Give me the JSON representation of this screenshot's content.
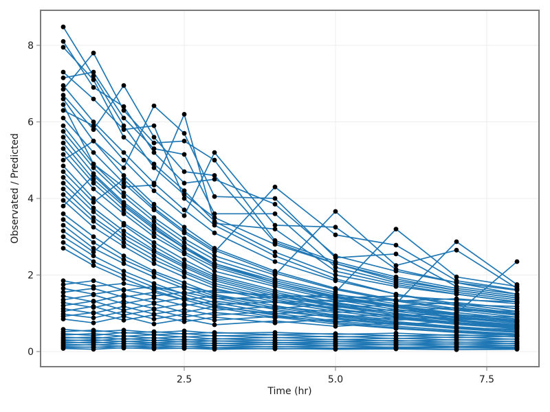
{
  "figure": {
    "background": "#ffffff"
  },
  "chart_data": {
    "type": "line",
    "title": "",
    "xlabel": "Time (hr)",
    "ylabel": "Observated / Predicted",
    "legend": "none",
    "grid": true,
    "marker": "circle",
    "xlim": [
      0.125,
      8.364
    ],
    "ylim": [
      -0.395,
      8.915
    ],
    "xticks": [
      2.5,
      5.0,
      7.5
    ],
    "xtick_labels": [
      "2.5",
      "5.0",
      "7.5"
    ],
    "yticks": [
      0,
      2,
      4,
      6,
      8
    ],
    "ytick_labels": [
      "0",
      "2",
      "4",
      "6",
      "8"
    ],
    "style": {
      "line_color": "#1f77b4",
      "marker_color": "#000000",
      "grid_color": "#ececec",
      "spine_color": "#7a7a7a",
      "tick_color": "#999999"
    },
    "x": [
      0.5,
      1,
      1.5,
      2,
      2.5,
      3,
      4,
      5,
      6,
      7,
      8
    ],
    "series": [
      [
        8.48,
        7.2,
        5.9,
        4.8,
        4.1,
        3.5,
        2.8,
        2.3,
        1.9,
        1.6,
        1.4
      ],
      [
        8.1,
        6.9,
        6.4,
        5.2,
        4.4,
        4.5,
        3.85,
        2.5,
        2.1,
        1.8,
        1.5
      ],
      [
        7.95,
        7.1,
        5.6,
        4.9,
        4.2,
        3.4,
        2.6,
        2.0,
        1.7,
        1.5,
        1.3
      ],
      [
        7.3,
        6.6,
        5.8,
        5.9,
        4.0,
        3.3,
        2.5,
        1.9,
        1.5,
        1.2,
        1.0
      ],
      [
        7.15,
        7.3,
        6.1,
        5.3,
        5.15,
        3.6,
        3.6,
        2.2,
        1.8,
        1.55,
        1.35
      ],
      [
        6.95,
        6.0,
        5.2,
        4.4,
        3.7,
        3.1,
        2.35,
        1.85,
        1.5,
        1.25,
        1.05
      ],
      [
        6.85,
        7.8,
        6.3,
        5.45,
        5.5,
        5.0,
        2.9,
        2.35,
        1.95,
        1.65,
        1.45
      ],
      [
        6.7,
        5.8,
        6.95,
        5.6,
        4.7,
        4.6,
        2.85,
        2.3,
        1.85,
        1.6,
        1.4
      ],
      [
        6.6,
        5.5,
        4.8,
        6.42,
        5.7,
        4.05,
        4.0,
        2.45,
        2.55,
        1.7,
        1.5
      ],
      [
        6.45,
        4.9,
        4.3,
        4.35,
        6.2,
        3.35,
        3.2,
        2.1,
        1.75,
        1.5,
        1.3
      ],
      [
        6.3,
        5.9,
        5.0,
        4.2,
        3.55,
        5.2,
        3.3,
        3.25,
        2.15,
        1.8,
        1.6
      ],
      [
        6.1,
        5.2,
        4.4,
        3.7,
        3.1,
        2.6,
        4.3,
        3.05,
        2.78,
        1.85,
        1.62
      ],
      [
        5.9,
        4.9,
        4.15,
        3.5,
        2.95,
        2.5,
        2.0,
        3.66,
        2.25,
        2.65,
        1.65
      ],
      [
        5.75,
        4.8,
        4.05,
        3.4,
        2.85,
        2.4,
        1.9,
        1.55,
        3.2,
        1.95,
        1.7
      ],
      [
        5.6,
        4.65,
        3.9,
        3.3,
        2.75,
        2.3,
        1.85,
        1.5,
        1.25,
        2.87,
        1.75
      ],
      [
        5.45,
        4.5,
        3.8,
        3.2,
        2.7,
        2.25,
        1.8,
        1.45,
        1.2,
        1.0,
        2.35
      ],
      [
        5.3,
        4.4,
        3.7,
        3.1,
        2.6,
        2.2,
        1.75,
        1.4,
        1.15,
        0.95,
        0.8
      ],
      [
        5.15,
        4.25,
        3.6,
        3.0,
        2.55,
        2.1,
        1.7,
        1.35,
        1.1,
        0.9,
        0.78
      ],
      [
        5.0,
        5.5,
        4.6,
        3.85,
        3.25,
        2.7,
        2.1,
        1.65,
        1.35,
        1.12,
        0.95
      ],
      [
        4.85,
        4.0,
        3.35,
        2.85,
        2.4,
        2.0,
        1.6,
        1.28,
        1.05,
        0.88,
        0.73
      ],
      [
        4.7,
        3.9,
        4.5,
        3.75,
        3.15,
        2.65,
        2.05,
        1.62,
        1.32,
        1.08,
        0.9
      ],
      [
        4.55,
        3.75,
        3.15,
        2.65,
        2.25,
        1.9,
        1.5,
        1.2,
        1.0,
        0.82,
        0.68
      ],
      [
        4.4,
        3.65,
        3.05,
        2.6,
        2.2,
        1.85,
        1.45,
        1.18,
        0.96,
        0.8,
        0.66
      ],
      [
        4.25,
        3.5,
        2.95,
        2.5,
        2.1,
        1.78,
        1.4,
        1.12,
        0.92,
        0.76,
        0.64
      ],
      [
        4.1,
        3.4,
        2.85,
        2.4,
        2.05,
        1.72,
        1.35,
        1.1,
        0.9,
        0.74,
        0.62
      ],
      [
        3.95,
        3.25,
        2.75,
        2.3,
        1.95,
        1.65,
        1.3,
        1.05,
        0.86,
        0.71,
        0.6
      ],
      [
        3.8,
        4.6,
        3.85,
        3.25,
        2.7,
        2.3,
        1.8,
        1.42,
        1.18,
        0.97,
        0.82
      ],
      [
        3.6,
        3.0,
        2.5,
        2.1,
        1.8,
        1.5,
        1.2,
        0.95,
        0.78,
        0.65,
        0.55
      ],
      [
        3.45,
        2.85,
        2.4,
        2.05,
        1.72,
        1.45,
        1.15,
        0.92,
        0.75,
        0.62,
        0.52
      ],
      [
        3.3,
        2.7,
        2.3,
        1.95,
        1.65,
        1.4,
        1.1,
        0.88,
        0.72,
        0.6,
        0.5
      ],
      [
        3.15,
        2.6,
        3.3,
        2.75,
        2.3,
        1.95,
        1.55,
        1.22,
        1.0,
        0.83,
        0.7
      ],
      [
        3.0,
        2.5,
        2.1,
        1.78,
        1.5,
        1.28,
        1.0,
        0.8,
        0.66,
        0.55,
        0.46
      ],
      [
        2.85,
        2.35,
        2.0,
        1.68,
        1.42,
        1.2,
        0.95,
        0.76,
        0.62,
        0.52,
        0.44
      ],
      [
        2.7,
        2.25,
        1.9,
        1.6,
        1.35,
        1.15,
        0.9,
        0.72,
        0.6,
        0.5,
        0.42
      ],
      [
        1.85,
        1.7,
        1.78,
        1.62,
        1.7,
        1.55,
        1.48,
        1.4,
        1.45,
        1.35,
        1.3
      ],
      [
        1.75,
        1.85,
        1.6,
        1.7,
        1.52,
        1.6,
        1.42,
        1.48,
        1.32,
        1.38,
        1.25
      ],
      [
        1.65,
        1.5,
        1.62,
        1.45,
        1.55,
        1.38,
        1.42,
        1.3,
        1.35,
        1.22,
        1.18
      ],
      [
        1.55,
        1.65,
        1.42,
        1.55,
        1.35,
        1.45,
        1.28,
        1.35,
        1.2,
        1.28,
        1.12
      ],
      [
        1.45,
        1.3,
        1.48,
        1.28,
        1.4,
        1.22,
        1.3,
        1.15,
        1.22,
        1.08,
        1.05
      ],
      [
        1.35,
        1.48,
        1.25,
        1.4,
        1.2,
        1.32,
        1.12,
        1.25,
        1.05,
        1.15,
        0.98
      ],
      [
        1.28,
        1.15,
        1.32,
        1.12,
        1.25,
        1.08,
        1.18,
        1.02,
        1.1,
        0.95,
        0.9
      ],
      [
        1.2,
        1.32,
        1.08,
        1.25,
        1.02,
        1.18,
        0.98,
        1.1,
        0.92,
        1.02,
        0.85
      ],
      [
        1.12,
        1.0,
        1.18,
        0.98,
        1.1,
        0.95,
        1.05,
        0.9,
        0.98,
        0.85,
        0.8
      ],
      [
        1.05,
        1.18,
        0.95,
        1.1,
        0.9,
        1.02,
        0.88,
        0.98,
        0.82,
        0.92,
        0.76
      ],
      [
        0.98,
        0.88,
        1.05,
        0.85,
        0.98,
        0.82,
        0.92,
        0.78,
        0.88,
        0.74,
        0.7
      ],
      [
        0.92,
        1.02,
        0.82,
        0.96,
        0.78,
        0.9,
        0.75,
        0.85,
        0.7,
        0.8,
        0.66
      ],
      [
        0.85,
        0.75,
        0.92,
        0.72,
        0.85,
        0.7,
        0.8,
        0.66,
        0.75,
        0.62,
        0.58
      ],
      [
        0.58,
        0.52,
        0.56,
        0.5,
        0.54,
        0.48,
        0.5,
        0.45,
        0.48,
        0.42,
        0.44
      ],
      [
        0.52,
        0.56,
        0.48,
        0.52,
        0.46,
        0.5,
        0.44,
        0.47,
        0.41,
        0.44,
        0.38
      ],
      [
        0.47,
        0.42,
        0.5,
        0.44,
        0.47,
        0.41,
        0.44,
        0.38,
        0.42,
        0.36,
        0.4
      ],
      [
        0.43,
        0.47,
        0.4,
        0.44,
        0.38,
        0.42,
        0.36,
        0.4,
        0.34,
        0.38,
        0.32
      ],
      [
        0.38,
        0.34,
        0.41,
        0.35,
        0.39,
        0.33,
        0.37,
        0.31,
        0.35,
        0.3,
        0.33
      ],
      [
        0.35,
        0.38,
        0.32,
        0.36,
        0.3,
        0.34,
        0.29,
        0.32,
        0.27,
        0.31,
        0.26
      ],
      [
        0.31,
        0.28,
        0.34,
        0.29,
        0.32,
        0.27,
        0.3,
        0.26,
        0.29,
        0.24,
        0.27
      ],
      [
        0.28,
        0.31,
        0.26,
        0.29,
        0.25,
        0.28,
        0.23,
        0.26,
        0.22,
        0.25,
        0.21
      ],
      [
        0.25,
        0.22,
        0.27,
        0.23,
        0.26,
        0.21,
        0.24,
        0.2,
        0.23,
        0.19,
        0.22
      ],
      [
        0.22,
        0.25,
        0.2,
        0.23,
        0.19,
        0.22,
        0.18,
        0.21,
        0.17,
        0.2,
        0.16
      ],
      [
        0.19,
        0.17,
        0.21,
        0.18,
        0.2,
        0.16,
        0.19,
        0.15,
        0.18,
        0.14,
        0.17
      ],
      [
        0.16,
        0.18,
        0.14,
        0.17,
        0.13,
        0.16,
        0.12,
        0.15,
        0.11,
        0.14,
        0.12
      ],
      [
        0.13,
        0.11,
        0.15,
        0.12,
        0.14,
        0.1,
        0.13,
        0.09,
        0.12,
        0.1,
        0.11
      ],
      [
        0.1,
        0.12,
        0.09,
        0.11,
        0.08,
        0.1,
        0.07,
        0.09,
        0.08,
        0.1,
        0.08
      ],
      [
        0.08,
        0.06,
        0.1,
        0.07,
        0.09,
        0.06,
        0.08,
        0.06,
        0.07,
        0.05,
        0.06
      ]
    ]
  }
}
